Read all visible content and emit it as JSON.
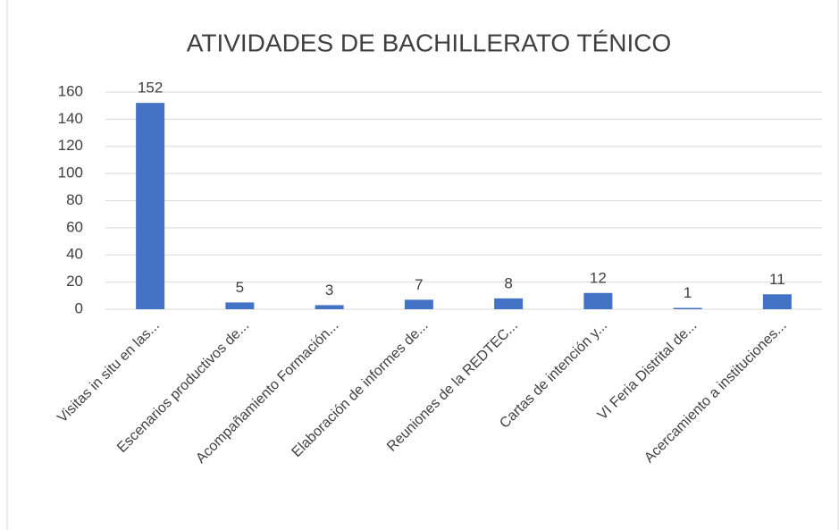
{
  "chart_data": {
    "type": "bar",
    "title": "ATIVIDADES DE BACHILLERATO TÉNICO",
    "categories": [
      "Visitas in situ en las...",
      "Escenarios productivos de...",
      "Acompañamiento Formación...",
      "Elaboración de informes de...",
      "Reuniones de la REDTEC...",
      "Cartas de intención y...",
      "VI Feria Distrital de...",
      "Acercamiento a instituciones..."
    ],
    "values": [
      152,
      5,
      3,
      7,
      8,
      12,
      1,
      11
    ],
    "color": "#4472c4",
    "ylim": [
      0,
      160
    ],
    "yticks": [
      0,
      20,
      40,
      60,
      80,
      100,
      120,
      140,
      160
    ],
    "grid": true
  }
}
